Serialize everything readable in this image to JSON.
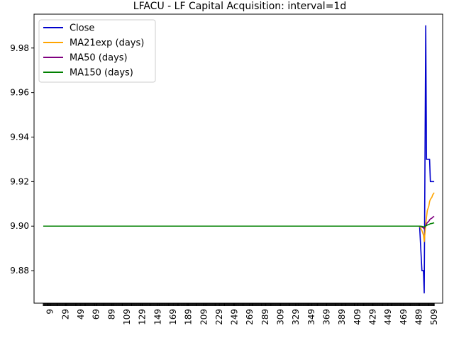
{
  "chart_data": {
    "type": "line",
    "title": "LFACU - LF Capital Acquisition: interval=1d",
    "xlabel": "",
    "ylabel": "",
    "xlim": [
      -12,
      520
    ],
    "ylim": [
      9.8654,
      9.9952
    ],
    "yticks": [
      9.88,
      9.9,
      9.92,
      9.94,
      9.96,
      9.98
    ],
    "ytick_labels": [
      "9.88",
      "9.90",
      "9.92",
      "9.94",
      "9.96",
      "9.98"
    ],
    "xticks": [
      9,
      29,
      49,
      69,
      89,
      109,
      129,
      149,
      169,
      189,
      209,
      229,
      249,
      269,
      289,
      309,
      329,
      349,
      369,
      389,
      409,
      429,
      449,
      469,
      489,
      509
    ],
    "xtick_labels": [
      "9",
      "29",
      "49",
      "69",
      "89",
      "109",
      "129",
      "149",
      "169",
      "189",
      "209",
      "229",
      "249",
      "269",
      "289",
      "309",
      "329",
      "349",
      "369",
      "389",
      "409",
      "429",
      "449",
      "469",
      "489",
      "509"
    ],
    "minor_x_ticks": {
      "from": 0,
      "to": 509,
      "step": 1
    },
    "legend_position": "upper-left",
    "grid": false,
    "series": [
      {
        "name": "Close",
        "color": "#0000cc",
        "x": [
          0,
          490,
          493,
          495,
          496,
          498,
          499,
          500,
          502,
          503,
          504,
          506,
          507,
          509
        ],
        "y": [
          9.9,
          9.9,
          9.88,
          9.88,
          9.87,
          9.99,
          9.93,
          9.93,
          9.93,
          9.93,
          9.92,
          9.92,
          9.92,
          9.92
        ]
      },
      {
        "name": "MA21exp (days)",
        "color": "#ffa500",
        "x": [
          0,
          20,
          490,
          493,
          495,
          496,
          498,
          499,
          500,
          502,
          503,
          504,
          506,
          507,
          509
        ],
        "y": [
          9.9,
          9.9,
          9.9,
          9.898,
          9.896,
          9.893,
          9.901,
          9.904,
          9.907,
          9.909,
          9.911,
          9.912,
          9.913,
          9.914,
          9.915
        ]
      },
      {
        "name": "MA50 (days)",
        "color": "#800080",
        "x": [
          0,
          49,
          490,
          493,
          495,
          496,
          498,
          499,
          500,
          502,
          503,
          504,
          506,
          507,
          509
        ],
        "y": [
          9.9,
          9.9,
          9.9,
          9.8996,
          9.8992,
          9.8988,
          9.9004,
          9.901,
          9.9016,
          9.9022,
          9.9028,
          9.9032,
          9.9036,
          9.904,
          9.9044
        ]
      },
      {
        "name": "MA150 (days)",
        "color": "#008000",
        "x": [
          0,
          149,
          490,
          493,
          495,
          496,
          498,
          499,
          500,
          502,
          503,
          504,
          506,
          507,
          509
        ],
        "y": [
          9.9,
          9.9,
          9.9,
          9.8999,
          9.8997,
          9.8996,
          9.9001,
          9.9003,
          9.9005,
          9.9007,
          9.9009,
          9.9011,
          9.9012,
          9.9013,
          9.9015
        ]
      }
    ]
  }
}
